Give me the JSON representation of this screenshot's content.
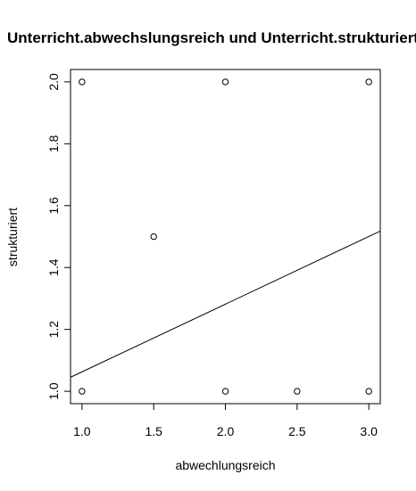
{
  "chart_data": {
    "type": "scatter",
    "title": "Unterricht.abwechslungsreich und Unterricht.strukturiert",
    "xlabel": "abwechlungsreich",
    "ylabel": "strukturiert",
    "xlim": [
      0.92,
      3.08
    ],
    "ylim": [
      0.96,
      2.04
    ],
    "xticks": [
      1.0,
      1.5,
      2.0,
      2.5,
      3.0
    ],
    "xtick_labels": [
      "1.0",
      "1.5",
      "2.0",
      "2.5",
      "3.0"
    ],
    "yticks": [
      1.0,
      1.2,
      1.4,
      1.6,
      1.8,
      2.0
    ],
    "ytick_labels": [
      "1.0",
      "1.2",
      "1.4",
      "1.6",
      "1.8",
      "2.0"
    ],
    "points": [
      {
        "x": 1.0,
        "y": 2.0
      },
      {
        "x": 2.0,
        "y": 2.0
      },
      {
        "x": 3.0,
        "y": 2.0
      },
      {
        "x": 1.5,
        "y": 1.5
      },
      {
        "x": 1.0,
        "y": 1.0
      },
      {
        "x": 2.0,
        "y": 1.0
      },
      {
        "x": 2.5,
        "y": 1.0
      },
      {
        "x": 3.0,
        "y": 1.0
      }
    ],
    "regression_line": {
      "intercept": 0.844,
      "slope": 0.2188
    },
    "grid": false,
    "legend": "none"
  }
}
